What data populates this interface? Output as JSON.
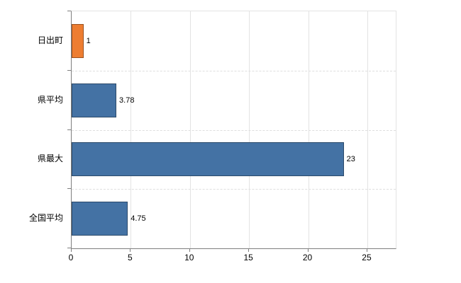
{
  "chart_data": {
    "type": "bar",
    "orientation": "horizontal",
    "title": "",
    "xlabel": "",
    "ylabel": "",
    "categories": [
      "日出町",
      "県平均",
      "県最大",
      "全国平均"
    ],
    "values": [
      1,
      3.78,
      23,
      4.75
    ],
    "value_labels": [
      "1",
      "3.78",
      "23",
      "4.75"
    ],
    "bar_colors": [
      "#ed7d31",
      "#4472a4",
      "#4472a4",
      "#4472a4"
    ],
    "x_ticks": [
      0,
      5,
      10,
      15,
      20,
      25
    ],
    "xlim": [
      0,
      27.4
    ],
    "grid": "vertical",
    "legend": "none",
    "background": "#ffffff",
    "axis_color": "#7f7f7f",
    "gridline_color": "#e3e3e3"
  }
}
